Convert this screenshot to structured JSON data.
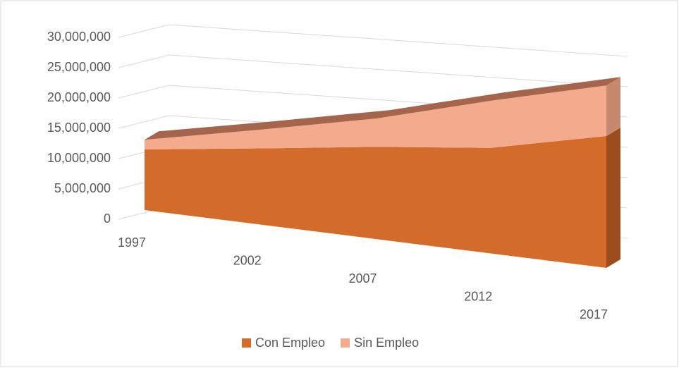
{
  "chart_data": {
    "type": "area3d",
    "categories": [
      "1997",
      "2002",
      "2007",
      "2012",
      "2017"
    ],
    "series": [
      {
        "name": "Con Empleo",
        "color": "#d36b2a",
        "values": [
          10000000,
          10600000,
          11100000,
          11200000,
          12500000
        ]
      },
      {
        "name": "Sin Empleo",
        "color": "#f4aa8c",
        "values": [
          1600000,
          2600000,
          3400000,
          5000000,
          4800000
        ]
      }
    ],
    "stacked": true,
    "ylim": [
      0,
      30000000
    ],
    "yticks": [
      {
        "value": 0,
        "label": "0"
      },
      {
        "value": 5000000,
        "label": "5,000,000"
      },
      {
        "value": 10000000,
        "label": "10,000,000"
      },
      {
        "value": 15000000,
        "label": "15,000,000"
      },
      {
        "value": 20000000,
        "label": "20,000,000"
      },
      {
        "value": 25000000,
        "label": "25,000,000"
      },
      {
        "value": 30000000,
        "label": "30,000,000"
      }
    ],
    "grid": true,
    "legend": "bottom"
  }
}
